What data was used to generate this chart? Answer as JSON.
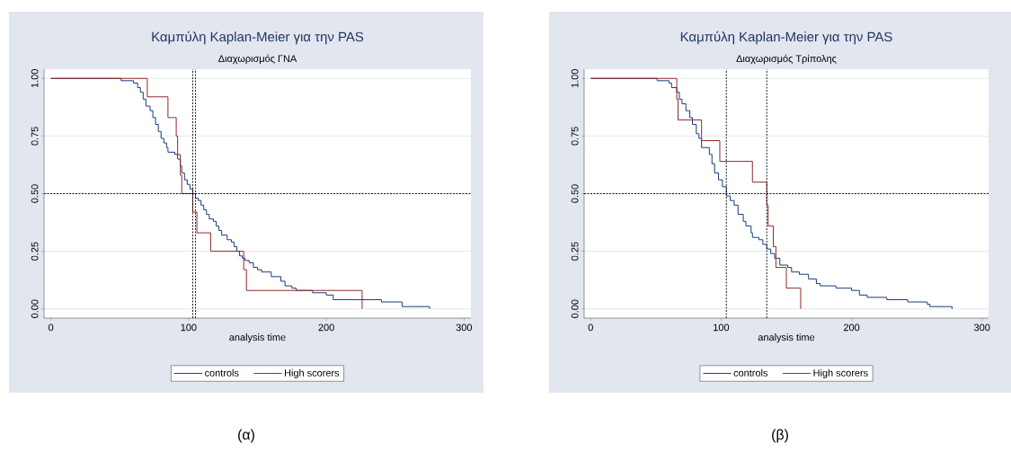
{
  "chart_data": [
    {
      "type": "step",
      "title": "Καμπύλη Kaplan-Meier για την PAS",
      "subtitle": "Διαχωρισμός ΓΝΑ",
      "xlabel": "analysis time",
      "xlim": [
        -5,
        305
      ],
      "xticks": [
        0,
        100,
        200,
        300
      ],
      "ylim": [
        -0.04,
        1.04
      ],
      "yticks": [
        {
          "value": 0,
          "label": "0.00"
        },
        {
          "value": 0.25,
          "label": "0.25"
        },
        {
          "value": 0.5,
          "label": "0.50"
        },
        {
          "value": 0.75,
          "label": "0.75"
        },
        {
          "value": 1,
          "label": "1.00"
        }
      ],
      "grid": "y",
      "legend": "bottom",
      "ref_lines": [
        {
          "axis": "y",
          "value": 0.5,
          "line_style": "dashed"
        },
        {
          "axis": "x",
          "value": 103,
          "line_style": "dashed"
        },
        {
          "axis": "x",
          "value": 105,
          "line_style": "dashed"
        }
      ],
      "annotations": [
        "(α)"
      ],
      "series": [
        {
          "name": "controls",
          "color": "#1a3c7a",
          "x": [
            0,
            51,
            60,
            63,
            65,
            67,
            69,
            72,
            74,
            76,
            78,
            80,
            82,
            84,
            85,
            90,
            92,
            94,
            95,
            97,
            99,
            101,
            103,
            105,
            107,
            109,
            111,
            113,
            115,
            118,
            120,
            122,
            124,
            128,
            131,
            133,
            135,
            137,
            139,
            141,
            144,
            147,
            150,
            153,
            160,
            167,
            170,
            175,
            178,
            190,
            200,
            205,
            240,
            255,
            275
          ],
          "values": [
            1,
            0.99,
            0.98,
            0.96,
            0.94,
            0.91,
            0.88,
            0.86,
            0.83,
            0.8,
            0.77,
            0.74,
            0.72,
            0.7,
            0.68,
            0.67,
            0.65,
            0.62,
            0.59,
            0.56,
            0.54,
            0.52,
            0.5,
            0.48,
            0.47,
            0.45,
            0.43,
            0.41,
            0.39,
            0.38,
            0.36,
            0.34,
            0.32,
            0.3,
            0.29,
            0.27,
            0.25,
            0.23,
            0.22,
            0.21,
            0.2,
            0.18,
            0.17,
            0.16,
            0.14,
            0.12,
            0.1,
            0.09,
            0.08,
            0.07,
            0.06,
            0.04,
            0.03,
            0.01,
            0
          ]
        },
        {
          "name": "High scorers",
          "color": "#8f2a2a",
          "x": [
            0,
            70,
            85,
            91,
            92,
            94,
            95,
            103,
            106,
            116,
            140,
            142,
            226
          ],
          "values": [
            1,
            0.92,
            0.83,
            0.75,
            0.67,
            0.58,
            0.5,
            0.42,
            0.33,
            0.25,
            0.17,
            0.08,
            0
          ]
        }
      ]
    },
    {
      "type": "step",
      "title": "Καμπύλη Kaplan-Meier για την PAS",
      "subtitle": "Διαχωρισμός Τρίπολης",
      "xlabel": "analysis time",
      "xlim": [
        -5,
        305
      ],
      "xticks": [
        0,
        100,
        200,
        300
      ],
      "ylim": [
        -0.04,
        1.04
      ],
      "yticks": [
        {
          "value": 0,
          "label": "0.00"
        },
        {
          "value": 0.25,
          "label": "0.25"
        },
        {
          "value": 0.5,
          "label": "0.50"
        },
        {
          "value": 0.75,
          "label": "0.75"
        },
        {
          "value": 1,
          "label": "1.00"
        }
      ],
      "grid": "y",
      "legend": "bottom",
      "ref_lines": [
        {
          "axis": "y",
          "value": 0.5,
          "line_style": "dashed"
        },
        {
          "axis": "x",
          "value": 104,
          "line_style": "dashed"
        },
        {
          "axis": "x",
          "value": 135,
          "line_style": "dashed"
        }
      ],
      "annotations": [
        "(β)"
      ],
      "series": [
        {
          "name": "controls",
          "color": "#1a3c7a",
          "x": [
            0,
            51,
            60,
            62,
            66,
            68,
            70,
            73,
            76,
            78,
            81,
            83,
            85,
            91,
            93,
            95,
            98,
            101,
            104,
            107,
            110,
            113,
            117,
            119,
            123,
            124,
            129,
            132,
            135,
            138,
            141,
            145,
            151,
            154,
            160,
            167,
            173,
            176,
            188,
            200,
            206,
            212,
            227,
            243,
            258,
            260,
            277
          ],
          "values": [
            1,
            0.99,
            0.98,
            0.96,
            0.94,
            0.91,
            0.89,
            0.86,
            0.83,
            0.8,
            0.76,
            0.74,
            0.7,
            0.67,
            0.63,
            0.59,
            0.56,
            0.53,
            0.49,
            0.47,
            0.45,
            0.41,
            0.38,
            0.36,
            0.33,
            0.31,
            0.3,
            0.28,
            0.26,
            0.24,
            0.22,
            0.19,
            0.18,
            0.16,
            0.15,
            0.13,
            0.11,
            0.1,
            0.09,
            0.08,
            0.06,
            0.05,
            0.04,
            0.03,
            0.02,
            0.01,
            0
          ]
        },
        {
          "name": "High scorers",
          "color": "#8f2a2a",
          "x": [
            0,
            66,
            67,
            85,
            99,
            124,
            135,
            136,
            140,
            142,
            150,
            161
          ],
          "values": [
            1,
            0.91,
            0.82,
            0.73,
            0.64,
            0.55,
            0.45,
            0.36,
            0.27,
            0.18,
            0.09,
            0
          ]
        }
      ]
    }
  ]
}
